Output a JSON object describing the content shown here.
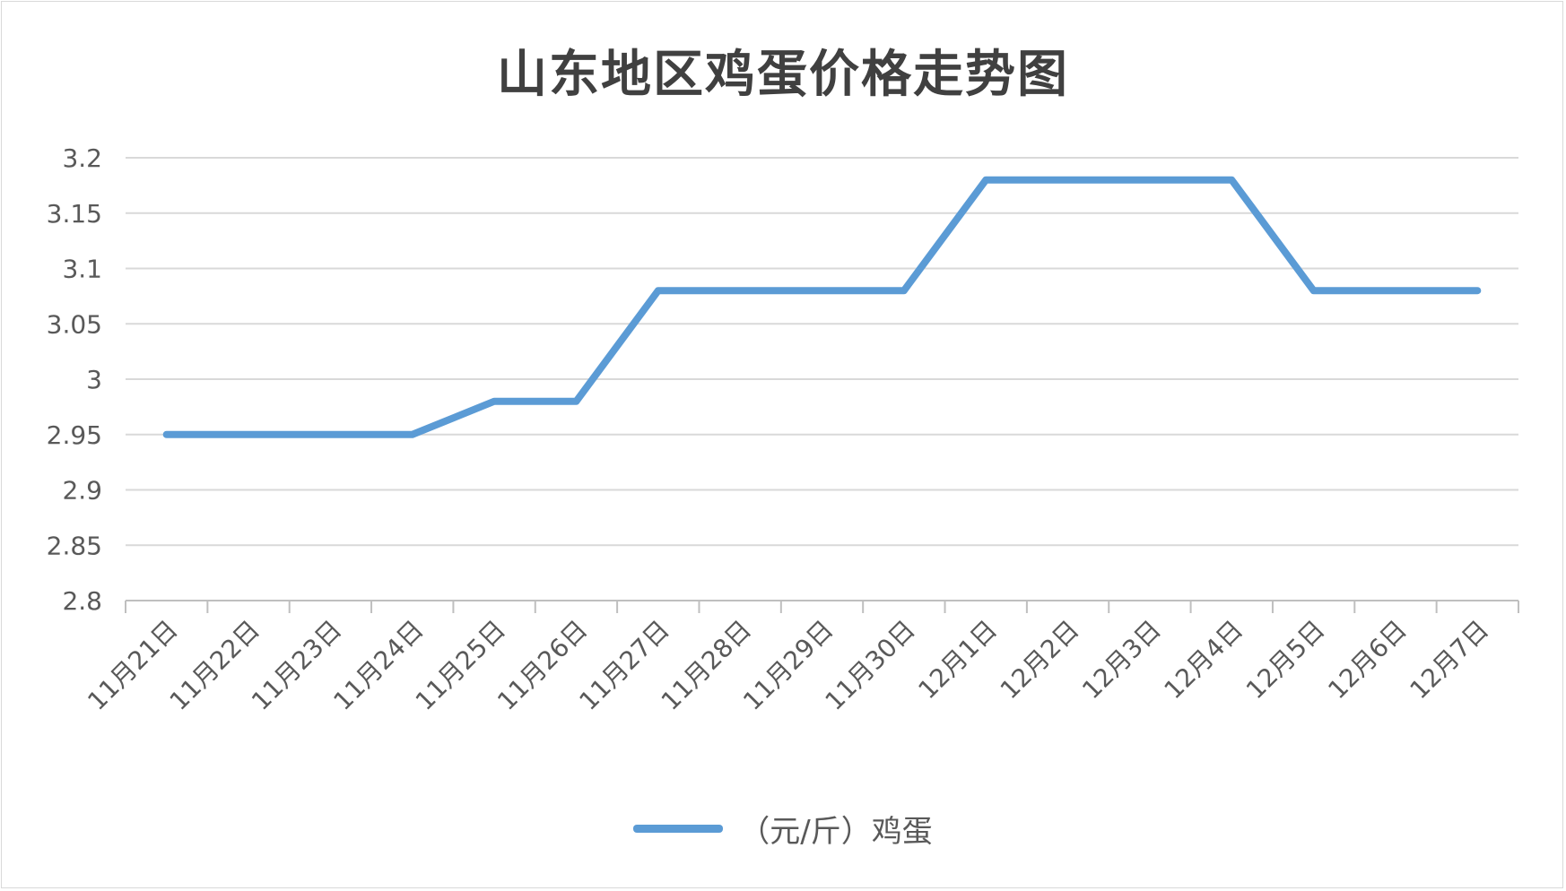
{
  "chart_data": {
    "type": "line",
    "title": "山东地区鸡蛋价格走势图",
    "xlabel": "",
    "ylabel": "",
    "categories": [
      "11月21日",
      "11月22日",
      "11月23日",
      "11月24日",
      "11月25日",
      "11月26日",
      "11月27日",
      "11月28日",
      "11月29日",
      "11月30日",
      "12月1日",
      "12月2日",
      "12月3日",
      "12月4日",
      "12月5日",
      "12月6日",
      "12月7日"
    ],
    "series": [
      {
        "name": "（元/斤）鸡蛋",
        "color": "#5b9bd5",
        "values": [
          2.95,
          2.95,
          2.95,
          2.95,
          2.98,
          2.98,
          3.08,
          3.08,
          3.08,
          3.08,
          3.18,
          3.18,
          3.18,
          3.18,
          3.08,
          3.08,
          3.08
        ]
      }
    ],
    "ylim": [
      2.8,
      3.2
    ],
    "yticks": [
      "2.8",
      "2.85",
      "2.9",
      "2.95",
      "3",
      "3.05",
      "3.1",
      "3.15",
      "3.2"
    ],
    "grid": true,
    "legend_position": "bottom",
    "colors": {
      "grid": "#d9d9d9",
      "axis": "#bfbfbf",
      "text": "#595959",
      "title": "#404040"
    }
  }
}
